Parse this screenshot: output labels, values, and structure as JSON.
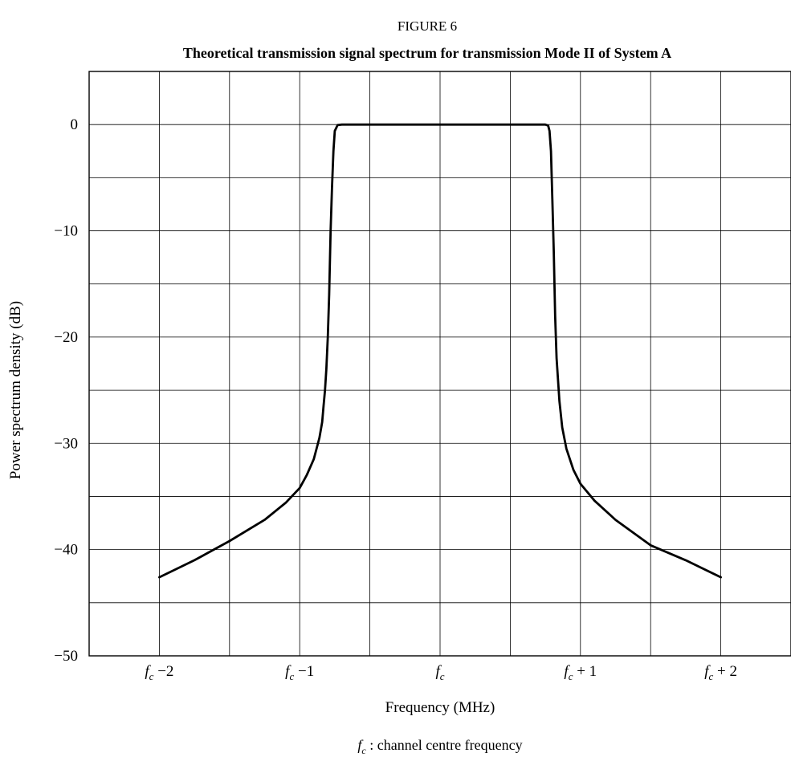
{
  "figure_label": "FIGURE 6",
  "chart_data": {
    "type": "line",
    "title": "Theoretical transmission signal spectrum for transmission Mode II of System A",
    "xlabel": "Frequency (MHz)",
    "ylabel": "Power spectrum density (dB)",
    "xlim": [
      -2.5,
      2.5
    ],
    "ylim": [
      -50,
      5
    ],
    "grid": true,
    "x_ticks": [
      {
        "value": -2,
        "base": "f",
        "sub": "c",
        "suffix": " −2"
      },
      {
        "value": -1,
        "base": "f",
        "sub": "c",
        "suffix": " −1"
      },
      {
        "value": 0,
        "base": "f",
        "sub": "c",
        "suffix": ""
      },
      {
        "value": 1,
        "base": "f",
        "sub": "c",
        "suffix": " + 1"
      },
      {
        "value": 2,
        "base": "f",
        "sub": "c",
        "suffix": " + 2"
      }
    ],
    "y_ticks": [
      {
        "value": 0,
        "label": "0"
      },
      {
        "value": -10,
        "label": "−10"
      },
      {
        "value": -20,
        "label": "−20"
      },
      {
        "value": -30,
        "label": "−30"
      },
      {
        "value": -40,
        "label": "−40"
      },
      {
        "value": -50,
        "label": "−50"
      }
    ],
    "series": [
      {
        "color": "#000000",
        "x": [
          -2.0,
          -1.75,
          -1.5,
          -1.25,
          -1.1,
          -1.0,
          -0.95,
          -0.9,
          -0.86,
          -0.84,
          -0.83,
          -0.82,
          -0.81,
          -0.8,
          -0.79,
          -0.78,
          -0.77,
          -0.76,
          -0.75,
          -0.73,
          -0.7,
          -0.5,
          0.0,
          0.5,
          0.75,
          0.77,
          0.78,
          0.79,
          0.8,
          0.81,
          0.82,
          0.83,
          0.85,
          0.87,
          0.9,
          0.95,
          1.0,
          1.1,
          1.25,
          1.5,
          1.75,
          2.0
        ],
        "y": [
          -42.6,
          -41.0,
          -39.2,
          -37.2,
          -35.6,
          -34.2,
          -33.0,
          -31.5,
          -29.5,
          -28.0,
          -26.5,
          -25.0,
          -23.0,
          -20.0,
          -16.0,
          -10.0,
          -6.0,
          -2.5,
          -0.6,
          -0.05,
          0.0,
          0.0,
          0.0,
          0.0,
          0.0,
          -0.1,
          -0.6,
          -2.5,
          -7.0,
          -12.0,
          -18.0,
          -22.0,
          -26.0,
          -28.5,
          -30.5,
          -32.5,
          -33.8,
          -35.4,
          -37.2,
          -39.6,
          -41.0,
          -42.6
        ]
      }
    ]
  },
  "footnote": {
    "base": "f",
    "sub": "c",
    "text": " : channel centre frequency"
  }
}
